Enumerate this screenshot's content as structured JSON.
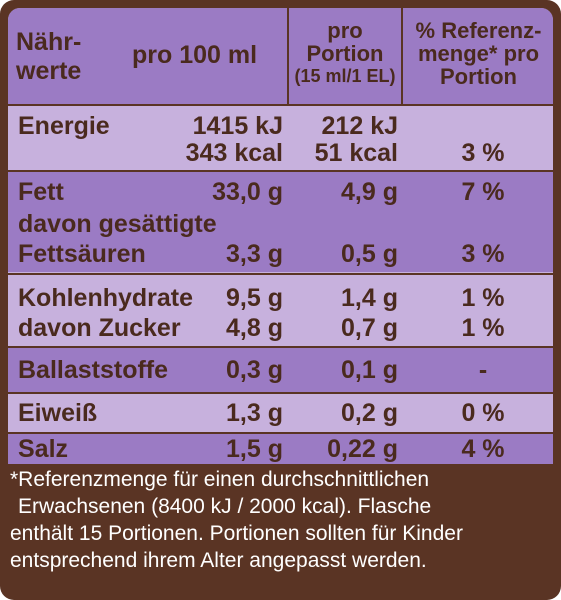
{
  "header": {
    "nutrients_label": [
      "Nähr-",
      "werte"
    ],
    "per_100ml": "pro 100 ml",
    "per_portion": [
      "pro",
      "Portion",
      "(15 ml/1 EL)"
    ],
    "reference_pct": [
      "% Referenz-",
      "menge* pro",
      "Portion"
    ]
  },
  "rows": {
    "energie": {
      "label": "Energie",
      "per100_kj": "1415 kJ",
      "per100_kcal": "343 kcal",
      "portion_kj": "212 kJ",
      "portion_kcal": "51 kcal",
      "ref": "3 %"
    },
    "fett": {
      "label": "Fett",
      "per100": "33,0 g",
      "portion": "4,9 g",
      "ref": "7 %"
    },
    "gesaettigt": {
      "label_line1": "davon gesättigte",
      "label_line2": "Fettsäuren",
      "per100": "3,3 g",
      "portion": "0,5 g",
      "ref": "3 %"
    },
    "kohlenhydrate": {
      "label": "Kohlenhydrate",
      "per100": "9,5 g",
      "portion": "1,4 g",
      "ref": "1 %"
    },
    "zucker": {
      "label": "davon Zucker",
      "per100": "4,8 g",
      "portion": "0,7 g",
      "ref": "1 %"
    },
    "ballast": {
      "label": "Ballaststoffe",
      "per100": "0,3 g",
      "portion": "0,1 g",
      "ref": "-"
    },
    "eiweiss": {
      "label": "Eiweiß",
      "per100": "1,3 g",
      "portion": "0,2 g",
      "ref": "0 %"
    },
    "salz": {
      "label": "Salz",
      "per100": "1,5 g",
      "portion": "0,22 g",
      "ref": "4 %"
    }
  },
  "footnote": [
    "*Referenzmenge für einen durchschnittlichen",
    "Erwachsenen (8400 kJ / 2000 kcal). Flasche",
    "enthält 15 Portionen. Portionen sollten für Kinder",
    "entsprechend ihrem Alter angepasst werden."
  ],
  "colors": {
    "border_brown": "#5a3424",
    "text_brown": "#4a2a1e",
    "row_dark_purple": "#9b7bc4",
    "row_light_purple": "#c7b1dd",
    "footnote_text": "#ffffff"
  }
}
